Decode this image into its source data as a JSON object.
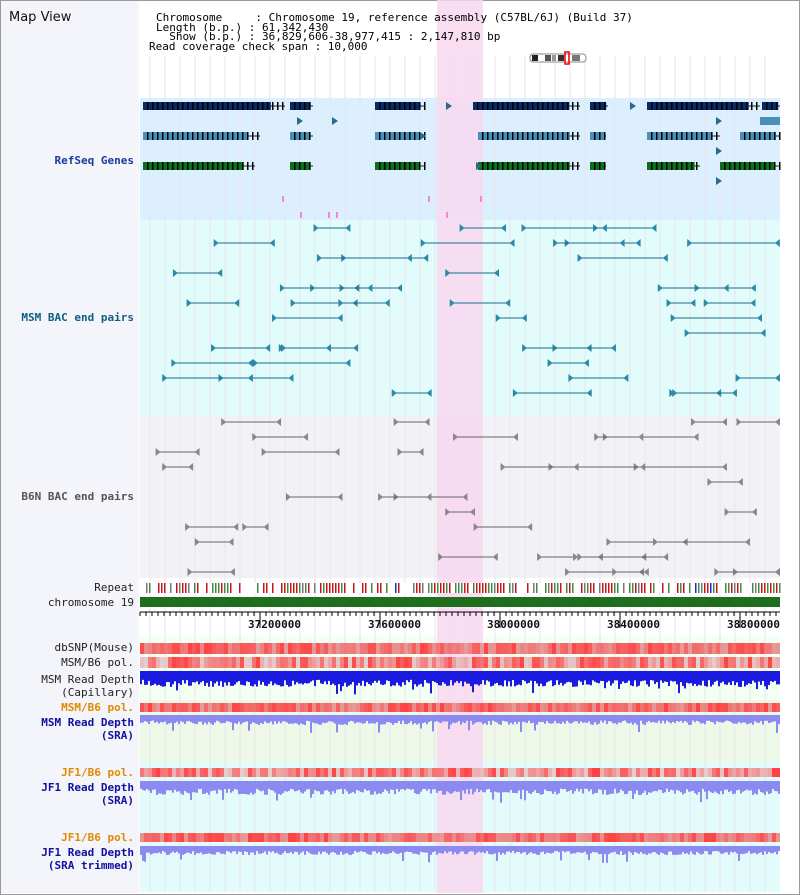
{
  "title": "Map View",
  "header": {
    "line1": "Chromosome     : Chromosome 19, reference assembly (C57BL/6J) (Build 37)",
    "line2": "Length (b.p.) : 61,342,430",
    "line3": "  Show (b.p.) : 36,829,606-38,977,415 : 2,147,810 bp",
    "line4": "Read coverage check span : 10,000"
  },
  "tracks": {
    "refseq": "RefSeq Genes",
    "msm_bac": "MSM BAC end pairs",
    "b6n_bac": "B6N BAC end pairs",
    "repeat": "Repeat",
    "chrom": "chromosome 19",
    "dbsnp": "dbSNP(Mouse)",
    "msm_pol": "MSM/B6 pol.",
    "msm_depth_cap": "MSM Read Depth\n(Capillary)",
    "msm_pol2": "MSM/B6 pol.",
    "msm_depth_sra": "MSM Read Depth\n(SRA)",
    "jf1_pol": "JF1/B6 pol.",
    "jf1_depth_sra": "JF1 Read Depth\n(SRA)",
    "jf1_pol2": "JF1/B6 pol.",
    "jf1_depth_trim": "JF1 Read Depth\n(SRA trimmed)"
  },
  "axis": {
    "ticks": [
      "37200000",
      "37600000",
      "38000000",
      "38400000",
      "38800000"
    ]
  },
  "colors": {
    "highlight": "#f8d8f0",
    "refseq_bg": "#dcefff",
    "msm_bg": "#e2fbfb",
    "b6n_bg": "#f2f2f6",
    "chrom_bar": "#1e6e1e",
    "msm_depth": "#1a1ae0",
    "sra_depth": "#8a8af0"
  }
}
